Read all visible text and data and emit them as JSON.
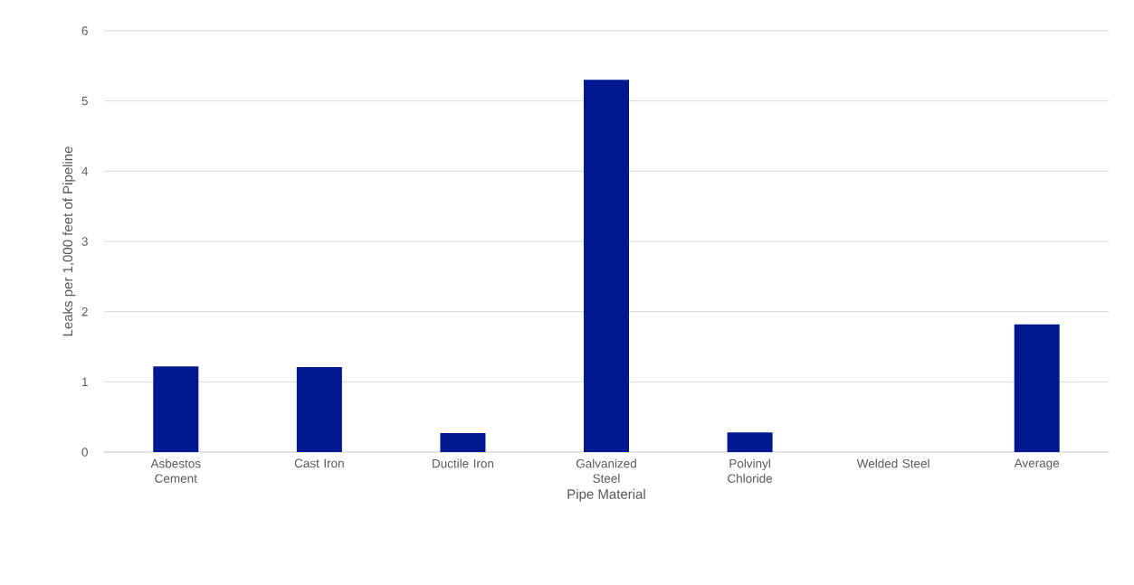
{
  "chart_data": {
    "type": "bar",
    "xlabel": "Pipe Material",
    "ylabel": "Leaks per 1,000 feet of Pipeline",
    "categories": [
      "Asbestos Cement",
      "Cast Iron",
      "Ductile Iron",
      "Galvanized Steel",
      "Polvinyl Chloride",
      "Welded Steel",
      "Average"
    ],
    "values": [
      1.22,
      1.21,
      0.27,
      5.3,
      0.28,
      0,
      1.82
    ],
    "color": "#00188f",
    "ylim": [
      0,
      6
    ],
    "yticks": [
      0,
      1,
      2,
      3,
      4,
      5,
      6
    ],
    "grid": "y"
  }
}
